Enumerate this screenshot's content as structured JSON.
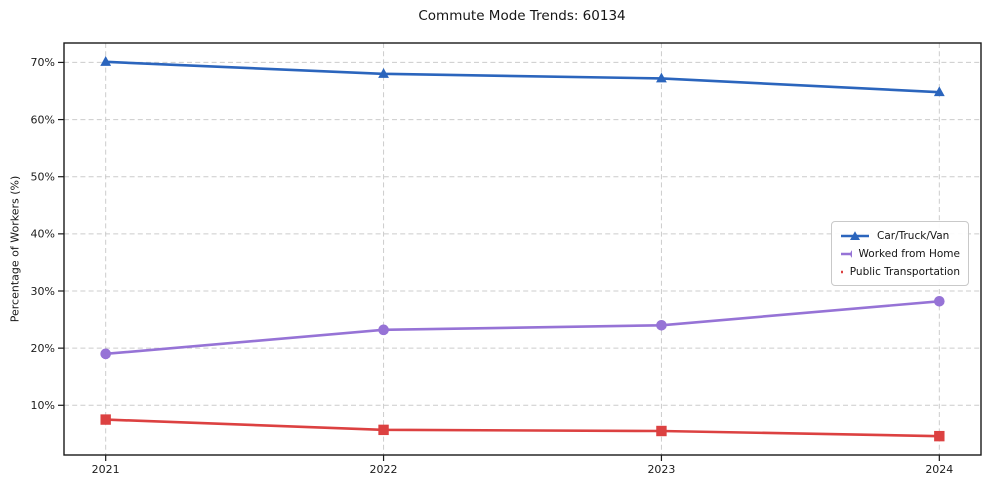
{
  "chart_data": {
    "type": "line",
    "title": "Commute Mode Trends: 60134",
    "ylabel": "Percentage of Workers (%)",
    "xlabel": "",
    "x": [
      2021,
      2022,
      2023,
      2024
    ],
    "x_tick_labels": [
      "2021",
      "2022",
      "2023",
      "2024"
    ],
    "y_ticks": [
      10,
      20,
      30,
      40,
      50,
      60,
      70
    ],
    "y_tick_labels": [
      "10%",
      "20%",
      "30%",
      "40%",
      "50%",
      "60%",
      "70%"
    ],
    "xlim": [
      2020.85,
      2024.15
    ],
    "ylim": [
      1.3,
      73.4
    ],
    "grid": true,
    "grid_style": "dashed",
    "legend_position": "center-right",
    "series": [
      {
        "name": "Car/Truck/Van",
        "marker": "triangle",
        "color": "#2b65bd",
        "values": [
          70.1,
          68.0,
          67.2,
          64.8
        ]
      },
      {
        "name": "Worked from Home",
        "marker": "circle",
        "color": "#9673d6",
        "values": [
          19.0,
          23.2,
          24.0,
          28.2
        ]
      },
      {
        "name": "Public Transportation",
        "marker": "square",
        "color": "#dc4141",
        "values": [
          7.5,
          5.7,
          5.5,
          4.6
        ]
      }
    ],
    "colors": {
      "grid": "#cccccc",
      "spine": "#1a1a1a",
      "text": "#1c1c1c",
      "background": "#ffffff"
    }
  }
}
